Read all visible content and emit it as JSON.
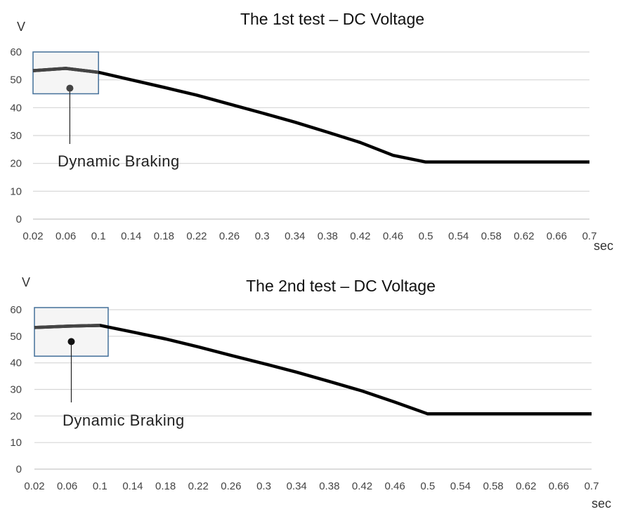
{
  "chart_data": [
    {
      "type": "line",
      "title": "The 1st test – DC Voltage",
      "ylabel": "V",
      "xlabel": "sec",
      "x": [
        0.02,
        0.06,
        0.1,
        0.14,
        0.18,
        0.22,
        0.26,
        0.3,
        0.34,
        0.38,
        0.42,
        0.46,
        0.5,
        0.54,
        0.58,
        0.62,
        0.66,
        0.7
      ],
      "xtick_labels": [
        "0.02",
        "0.06",
        "0.1",
        "0.14",
        "0.18",
        "0.22",
        "0.26",
        "0.3",
        "0.34",
        "0.38",
        "0.42",
        "0.46",
        "0.5",
        "0.54",
        "0.58",
        "0.62",
        "0.66",
        "0.7"
      ],
      "yticks": [
        0,
        10,
        20,
        30,
        40,
        50,
        60
      ],
      "ylim": [
        0,
        60
      ],
      "grid": true,
      "series": [
        {
          "values": [
            53.3,
            54.1,
            52.7,
            50.0,
            47.3,
            44.5,
            41.3,
            38.1,
            34.8,
            31.2,
            27.5,
            22.9,
            20.5,
            20.5,
            20.5,
            20.5,
            20.5,
            20.5
          ]
        }
      ],
      "annotation": {
        "text": "Dynamic Braking",
        "box": {
          "x0": 0.02,
          "x1": 0.1,
          "y0": 45,
          "y1": 60
        },
        "marker": {
          "x": 0.065,
          "y": 47
        }
      }
    },
    {
      "type": "line",
      "title": "The 2nd test – DC Voltage",
      "ylabel": "V",
      "xlabel": "sec",
      "x": [
        0.02,
        0.06,
        0.1,
        0.14,
        0.18,
        0.22,
        0.26,
        0.3,
        0.34,
        0.38,
        0.42,
        0.46,
        0.5,
        0.54,
        0.58,
        0.62,
        0.66,
        0.7
      ],
      "xtick_labels": [
        "0.02",
        "0.06",
        "0.1",
        "0.14",
        "0.18",
        "0.22",
        "0.26",
        "0.3",
        "0.34",
        "0.38",
        "0.42",
        "0.46",
        "0.5",
        "0.54",
        "0.58",
        "0.62",
        "0.66",
        "0.7"
      ],
      "yticks": [
        0,
        10,
        20,
        30,
        40,
        50,
        60
      ],
      "ylim": [
        0,
        60
      ],
      "grid": true,
      "series": [
        {
          "values": [
            53.3,
            53.8,
            54.1,
            51.6,
            49.0,
            46.0,
            42.8,
            39.7,
            36.5,
            33.0,
            29.4,
            25.2,
            20.8,
            20.8,
            20.8,
            20.8,
            20.8,
            20.8
          ]
        }
      ],
      "annotation": {
        "text": "Dynamic Braking",
        "box": {
          "x0": 0.02,
          "x1": 0.11,
          "y0": 42.5,
          "y1": 60.8
        },
        "marker": {
          "x": 0.065,
          "y": 48
        }
      }
    }
  ]
}
